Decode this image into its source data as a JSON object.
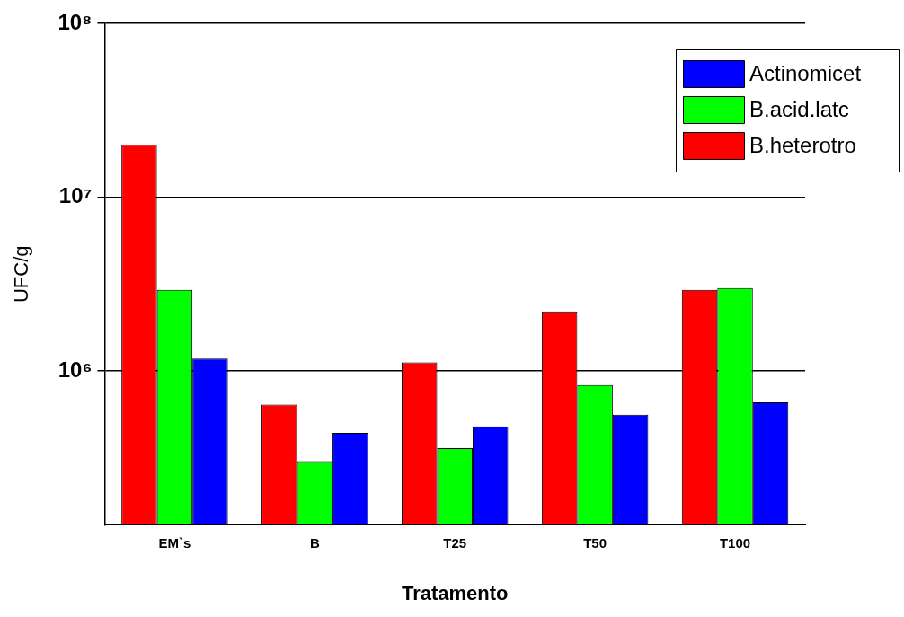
{
  "chart_data": {
    "type": "bar",
    "xlabel": "Tratamento",
    "ylabel": "UFC/g",
    "categories": [
      "EM`s",
      "B",
      "T25",
      "T50",
      "T100"
    ],
    "series": [
      {
        "name": "B.heterotro",
        "color": "#ff0000",
        "values": [
          20000000,
          640000,
          1120000,
          2200000,
          2930000
        ]
      },
      {
        "name": "B.acid.latc",
        "color": "#00ff00",
        "values": [
          2930000,
          303000,
          360000,
          830000,
          3000000
        ]
      },
      {
        "name": "Actinomicet",
        "color": "#0000ff",
        "values": [
          1180000,
          440000,
          480000,
          560000,
          660000
        ]
      }
    ],
    "log": "y",
    "ylim": [
      130000,
      100000000
    ],
    "yticks": [
      {
        "value": 1000000,
        "label": "10⁶"
      },
      {
        "value": 10000000,
        "label": "10⁷"
      },
      {
        "value": 100000000,
        "label": "10⁸"
      }
    ],
    "grid": "y",
    "legend": "top right"
  }
}
